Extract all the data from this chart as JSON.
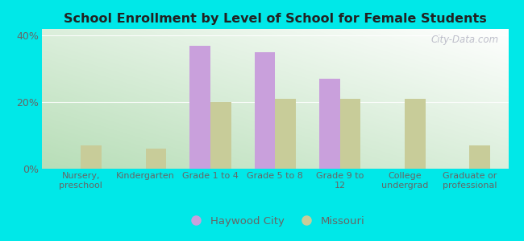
{
  "title": "School Enrollment by Level of School for Female Students",
  "categories": [
    "Nursery,\npreschool",
    "Kindergarten",
    "Grade 1 to 4",
    "Grade 5 to 8",
    "Grade 9 to\n12",
    "College\nundergrad",
    "Graduate or\nprofessional"
  ],
  "haywood_city": [
    0,
    0,
    37,
    35,
    27,
    0,
    0
  ],
  "missouri": [
    7,
    6,
    20,
    21,
    21,
    21,
    7
  ],
  "haywood_color": "#c9a0dc",
  "missouri_color": "#c8cc99",
  "bg_color": "#00e8e8",
  "ylabel_ticks": [
    "0%",
    "20%",
    "40%"
  ],
  "yticks": [
    0,
    20,
    40
  ],
  "ylim": [
    0,
    42
  ],
  "legend_haywood": "Haywood City",
  "legend_missouri": "Missouri",
  "watermark": "City-Data.com",
  "bar_width": 0.32,
  "gradient_colors": [
    "#b8ddb8",
    "#f0faf0",
    "#ffffff"
  ],
  "grid_color": "#cccccc",
  "tick_label_color": "#666666"
}
